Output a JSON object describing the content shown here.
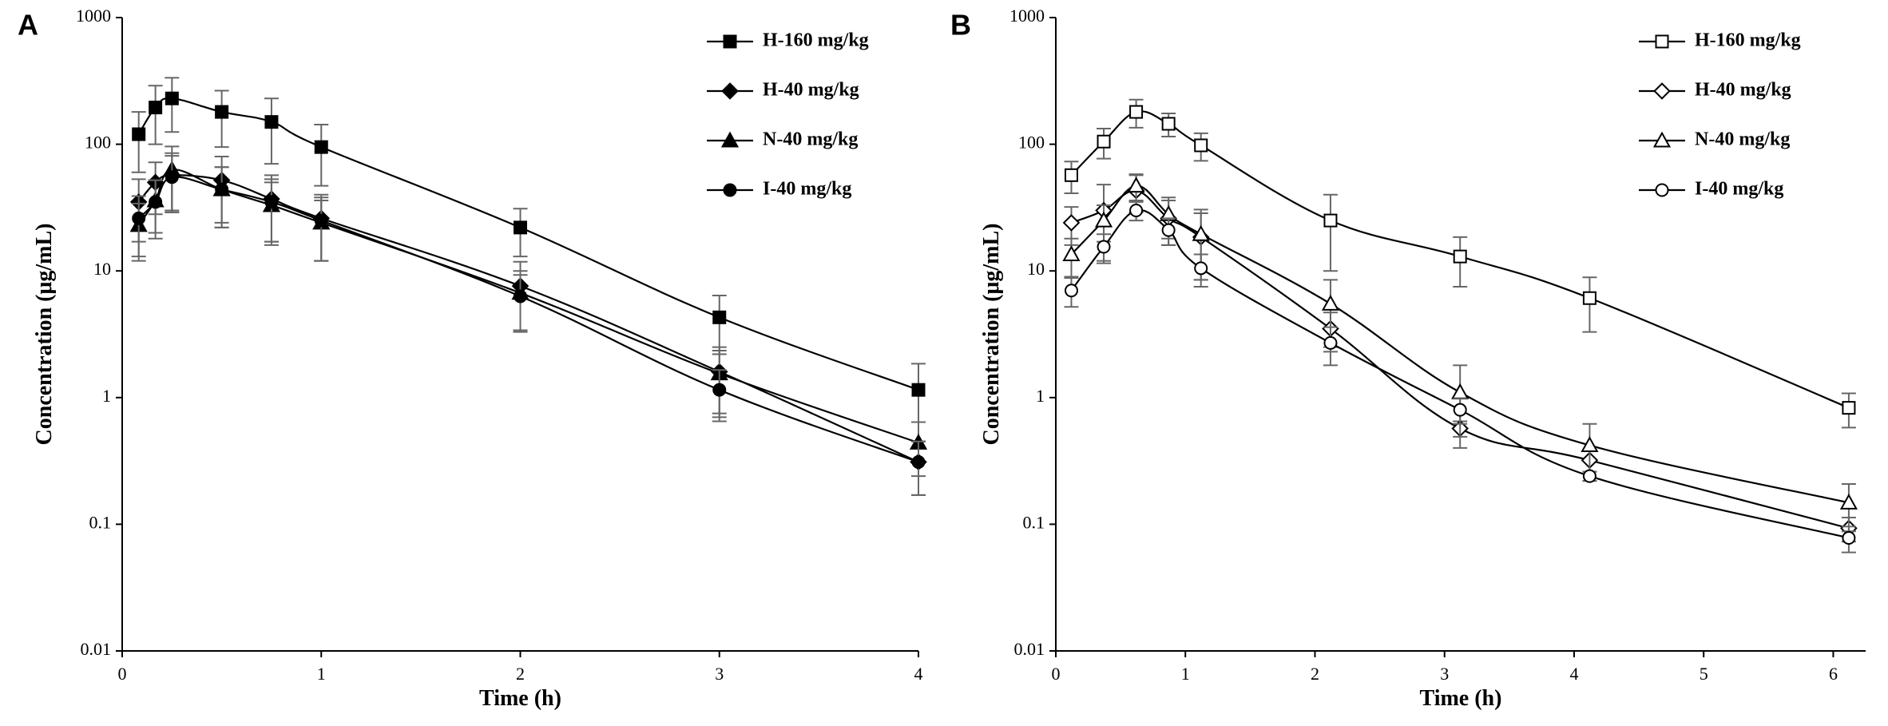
{
  "chart_data": [
    {
      "panel_label": "A",
      "type": "line",
      "yscale": "log",
      "xlabel": "Time (h)",
      "ylabel": "Concentration (μg/mL)",
      "xlim": [
        0,
        4
      ],
      "ylim": [
        0.01,
        1000
      ],
      "xticks": [
        "0",
        "1",
        "2",
        "3",
        "4"
      ],
      "yticks": [
        "0.01",
        "0.1",
        "1",
        "10",
        "100",
        "1000"
      ],
      "legend_position": "top-right",
      "series": [
        {
          "name": "H-160 mg/kg",
          "marker": "square",
          "filled": true,
          "x": [
            0.083,
            0.167,
            0.25,
            0.5,
            0.75,
            1,
            2,
            3,
            4
          ],
          "y": [
            120,
            195,
            230,
            180,
            150,
            95,
            22,
            4.3,
            1.15
          ],
          "err": [
            60,
            95,
            105,
            85,
            80,
            48,
            9,
            2.1,
            0.7
          ]
        },
        {
          "name": "H-40 mg/kg",
          "marker": "diamond",
          "filled": true,
          "x": [
            0.083,
            0.167,
            0.25,
            0.5,
            0.75,
            1,
            2,
            3,
            4
          ],
          "y": [
            35,
            50,
            57,
            52,
            37,
            26,
            7.6,
            1.6,
            0.31
          ],
          "err": [
            18,
            22,
            28,
            28,
            20,
            14,
            4.2,
            0.9,
            0.14
          ]
        },
        {
          "name": "N-40 mg/kg",
          "marker": "triangle",
          "filled": true,
          "x": [
            0.083,
            0.167,
            0.25,
            0.5,
            0.75,
            1,
            2,
            3,
            4
          ],
          "y": [
            23,
            36,
            63,
            44,
            33,
            24,
            6.7,
            1.55,
            0.44
          ],
          "err": [
            11,
            16,
            33,
            22,
            17,
            12,
            3.3,
            0.8,
            0.2
          ]
        },
        {
          "name": "I-40 mg/kg",
          "marker": "circle",
          "filled": true,
          "x": [
            0.083,
            0.167,
            0.25,
            0.5,
            0.75,
            1,
            2,
            3,
            4
          ],
          "y": [
            26,
            35,
            55,
            44,
            35,
            25,
            6.3,
            1.15,
            0.31
          ],
          "err": [
            13,
            17,
            26,
            22,
            18,
            13,
            3,
            0.5,
            0.14
          ]
        }
      ]
    },
    {
      "panel_label": "B",
      "type": "line",
      "yscale": "log",
      "xlabel": "Time (h)",
      "ylabel": "Concentration (μg/mL)",
      "xlim": [
        0,
        6.25
      ],
      "ylim": [
        0.01,
        1000
      ],
      "xticks": [
        "0",
        "1",
        "2",
        "3",
        "4",
        "5",
        "6"
      ],
      "yticks": [
        "0.01",
        "0.1",
        "1",
        "10",
        "100",
        "1000"
      ],
      "legend_position": "top-right",
      "series": [
        {
          "name": "H-160 mg/kg",
          "marker": "square",
          "filled": false,
          "x": [
            0.12,
            0.37,
            0.62,
            0.87,
            1.12,
            2.12,
            3.12,
            4.12,
            6.12
          ],
          "y": [
            57,
            105,
            180,
            145,
            98,
            25,
            13,
            6.1,
            0.83
          ],
          "err": [
            16,
            28,
            45,
            30,
            24,
            15,
            5.5,
            2.8,
            0.25
          ]
        },
        {
          "name": "H-40 mg/kg",
          "marker": "diamond",
          "filled": false,
          "x": [
            0.12,
            0.37,
            0.62,
            0.87,
            1.12,
            2.12,
            3.12,
            4.12,
            6.12
          ],
          "y": [
            24,
            30,
            43,
            26,
            18.5,
            3.5,
            0.57,
            0.32,
            0.093
          ],
          "err": [
            8,
            18,
            14,
            10,
            10,
            1.2,
            0.08,
            0.06,
            0.02
          ]
        },
        {
          "name": "N-40 mg/kg",
          "marker": "triangle",
          "filled": false,
          "x": [
            0.12,
            0.37,
            0.62,
            0.87,
            1.12,
            2.12,
            3.12,
            4.12,
            6.12
          ],
          "y": [
            13.5,
            25,
            47,
            28,
            19.5,
            5.5,
            1.1,
            0.42,
            0.148
          ],
          "err": [
            4.5,
            8,
            11,
            10,
            11,
            3,
            0.7,
            0.2,
            0.06
          ]
        },
        {
          "name": "I-40 mg/kg",
          "marker": "circle",
          "filled": false,
          "x": [
            0.12,
            0.37,
            0.62,
            0.87,
            1.12,
            2.12,
            3.12,
            4.12,
            6.12
          ],
          "y": [
            7,
            15.5,
            30,
            21,
            10.5,
            2.7,
            0.8,
            0.24,
            0.078
          ],
          "err": [
            1.8,
            4,
            5,
            5,
            3,
            0.9,
            0.18,
            0.02,
            0.018
          ]
        }
      ]
    }
  ]
}
